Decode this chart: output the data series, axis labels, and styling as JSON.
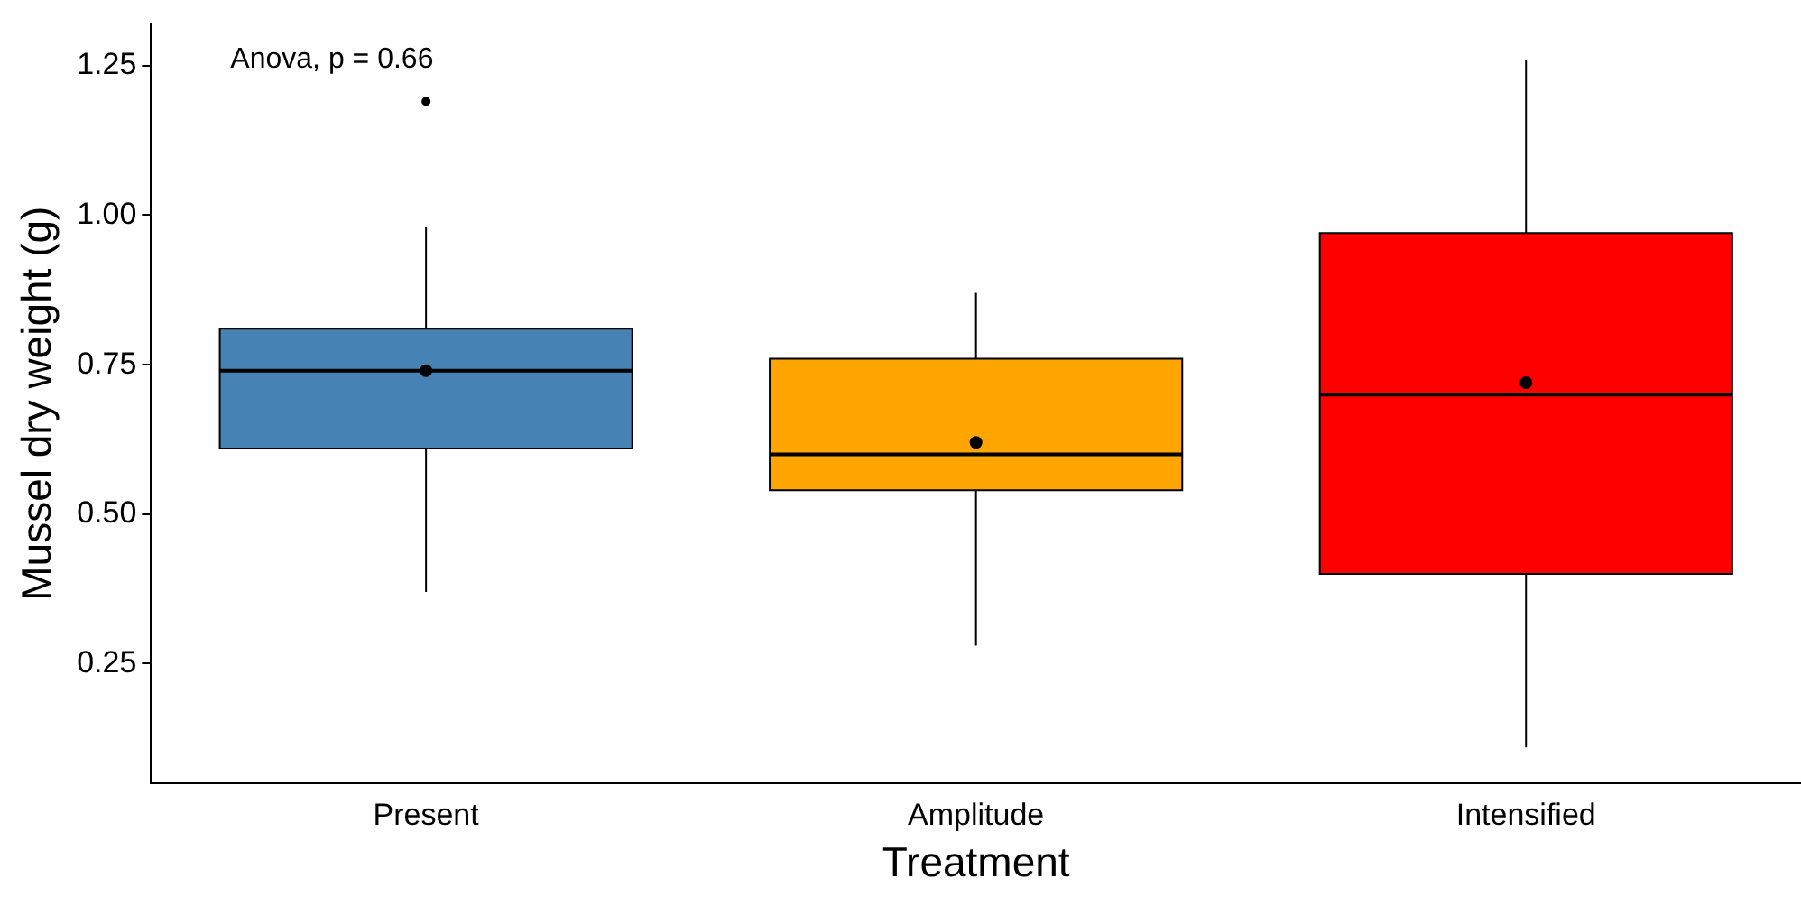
{
  "chart_data": {
    "type": "box",
    "xlabel": "Treatment",
    "ylabel": "Mussel dry weight (g)",
    "categories": [
      "Present",
      "Amplitude",
      "Intensified"
    ],
    "colors": [
      "#4682b4",
      "#ffa500",
      "#ff0000"
    ],
    "boxes": [
      {
        "low": 0.37,
        "q1": 0.61,
        "median": 0.74,
        "q3": 0.81,
        "high": 0.98,
        "mean": 0.74,
        "outliers": [
          1.19
        ]
      },
      {
        "low": 0.28,
        "q1": 0.54,
        "median": 0.6,
        "q3": 0.76,
        "high": 0.87,
        "mean": 0.62
      },
      {
        "low": 0.11,
        "q1": 0.4,
        "median": 0.7,
        "q3": 0.97,
        "high": 1.26,
        "mean": 0.72
      }
    ],
    "ylim": [
      0.05,
      1.32
    ],
    "yticks": [
      0.25,
      {
        "value": 0.5,
        "label": "0.50"
      },
      0.75,
      {
        "value": 1,
        "label": "1.00"
      },
      1.25
    ],
    "annotations": [
      "Anova, p = 0.66"
    ],
    "grid": false,
    "legend": false
  }
}
